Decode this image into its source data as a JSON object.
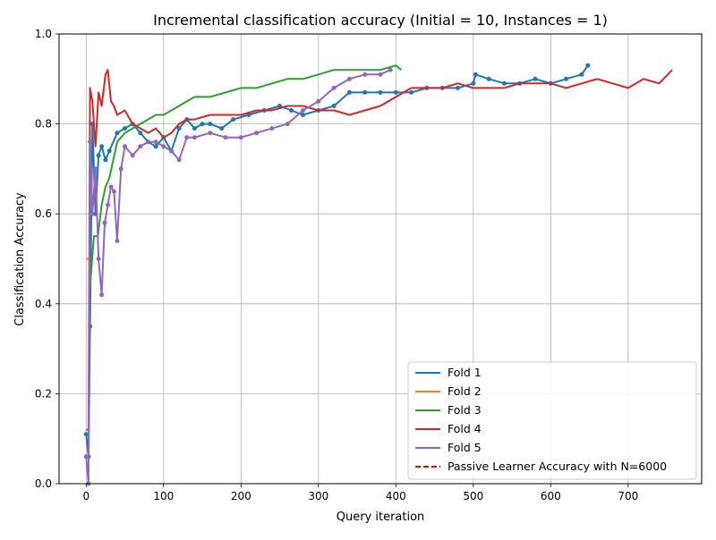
{
  "chart_data": {
    "type": "line",
    "title": "Incremental classification accuracy (Initial = 10, Instances = 1)",
    "xlabel": "Query iteration",
    "ylabel": "Classification Accuracy",
    "xlim": [
      -35,
      795
    ],
    "ylim": [
      0.0,
      1.0
    ],
    "xticks": [
      0,
      100,
      200,
      300,
      400,
      500,
      600,
      700
    ],
    "yticks": [
      0.0,
      0.2,
      0.4,
      0.6,
      0.8,
      1.0
    ],
    "xtick_labels": [
      "0",
      "100",
      "200",
      "300",
      "400",
      "500",
      "600",
      "700"
    ],
    "ytick_labels": [
      "0.0",
      "0.2",
      "0.4",
      "0.6",
      "0.8",
      "1.0"
    ],
    "grid": true,
    "legend_position": "lower-right",
    "series": [
      {
        "name": "Fold 1",
        "color": "#1f77b4",
        "style": "solid-markers",
        "points": [
          [
            0,
            0.11
          ],
          [
            3,
            0.06
          ],
          [
            5,
            0.35
          ],
          [
            8,
            0.8
          ],
          [
            12,
            0.6
          ],
          [
            16,
            0.73
          ],
          [
            20,
            0.75
          ],
          [
            25,
            0.72
          ],
          [
            30,
            0.74
          ],
          [
            40,
            0.78
          ],
          [
            50,
            0.79
          ],
          [
            60,
            0.8
          ],
          [
            70,
            0.78
          ],
          [
            80,
            0.76
          ],
          [
            90,
            0.75
          ],
          [
            100,
            0.77
          ],
          [
            110,
            0.74
          ],
          [
            120,
            0.79
          ],
          [
            130,
            0.81
          ],
          [
            140,
            0.79
          ],
          [
            150,
            0.8
          ],
          [
            160,
            0.8
          ],
          [
            175,
            0.79
          ],
          [
            190,
            0.81
          ],
          [
            210,
            0.82
          ],
          [
            230,
            0.83
          ],
          [
            250,
            0.84
          ],
          [
            265,
            0.83
          ],
          [
            280,
            0.82
          ],
          [
            300,
            0.83
          ],
          [
            320,
            0.84
          ],
          [
            340,
            0.87
          ],
          [
            360,
            0.87
          ],
          [
            380,
            0.87
          ],
          [
            400,
            0.87
          ],
          [
            420,
            0.87
          ],
          [
            440,
            0.88
          ],
          [
            460,
            0.88
          ],
          [
            480,
            0.88
          ],
          [
            500,
            0.89
          ],
          [
            503,
            0.91
          ],
          [
            520,
            0.9
          ],
          [
            540,
            0.89
          ],
          [
            560,
            0.89
          ],
          [
            580,
            0.9
          ],
          [
            600,
            0.89
          ],
          [
            620,
            0.9
          ],
          [
            640,
            0.91
          ],
          [
            648,
            0.93
          ]
        ]
      },
      {
        "name": "Fold 2",
        "color": "#ff7f0e",
        "style": "solid",
        "points": [
          [
            0,
            0.5
          ],
          [
            4,
            0.5
          ]
        ]
      },
      {
        "name": "Fold 3",
        "color": "#2ca02c",
        "style": "solid",
        "points": [
          [
            5,
            0.44
          ],
          [
            10,
            0.55
          ],
          [
            15,
            0.55
          ],
          [
            20,
            0.62
          ],
          [
            25,
            0.66
          ],
          [
            30,
            0.68
          ],
          [
            35,
            0.72
          ],
          [
            40,
            0.76
          ],
          [
            50,
            0.78
          ],
          [
            60,
            0.79
          ],
          [
            70,
            0.8
          ],
          [
            80,
            0.81
          ],
          [
            90,
            0.82
          ],
          [
            100,
            0.82
          ],
          [
            110,
            0.83
          ],
          [
            120,
            0.84
          ],
          [
            130,
            0.85
          ],
          [
            140,
            0.86
          ],
          [
            160,
            0.86
          ],
          [
            180,
            0.87
          ],
          [
            200,
            0.88
          ],
          [
            220,
            0.88
          ],
          [
            240,
            0.89
          ],
          [
            260,
            0.9
          ],
          [
            280,
            0.9
          ],
          [
            300,
            0.91
          ],
          [
            320,
            0.92
          ],
          [
            340,
            0.92
          ],
          [
            360,
            0.92
          ],
          [
            380,
            0.92
          ],
          [
            400,
            0.93
          ],
          [
            407,
            0.92
          ]
        ]
      },
      {
        "name": "Fold 4",
        "color": "#d62728",
        "style": "solid",
        "points": [
          [
            0,
            0.12
          ],
          [
            3,
            0.12
          ],
          [
            5,
            0.88
          ],
          [
            8,
            0.85
          ],
          [
            12,
            0.75
          ],
          [
            16,
            0.87
          ],
          [
            20,
            0.84
          ],
          [
            25,
            0.91
          ],
          [
            28,
            0.92
          ],
          [
            32,
            0.85
          ],
          [
            36,
            0.84
          ],
          [
            40,
            0.82
          ],
          [
            50,
            0.83
          ],
          [
            60,
            0.8
          ],
          [
            70,
            0.79
          ],
          [
            80,
            0.78
          ],
          [
            90,
            0.79
          ],
          [
            100,
            0.77
          ],
          [
            110,
            0.78
          ],
          [
            120,
            0.8
          ],
          [
            130,
            0.81
          ],
          [
            140,
            0.81
          ],
          [
            160,
            0.82
          ],
          [
            180,
            0.82
          ],
          [
            200,
            0.82
          ],
          [
            220,
            0.83
          ],
          [
            240,
            0.83
          ],
          [
            260,
            0.84
          ],
          [
            280,
            0.84
          ],
          [
            300,
            0.83
          ],
          [
            320,
            0.83
          ],
          [
            340,
            0.82
          ],
          [
            360,
            0.83
          ],
          [
            380,
            0.84
          ],
          [
            400,
            0.86
          ],
          [
            420,
            0.88
          ],
          [
            440,
            0.88
          ],
          [
            460,
            0.88
          ],
          [
            480,
            0.89
          ],
          [
            500,
            0.88
          ],
          [
            520,
            0.88
          ],
          [
            540,
            0.88
          ],
          [
            560,
            0.89
          ],
          [
            580,
            0.89
          ],
          [
            600,
            0.89
          ],
          [
            620,
            0.88
          ],
          [
            640,
            0.89
          ],
          [
            660,
            0.9
          ],
          [
            680,
            0.89
          ],
          [
            700,
            0.88
          ],
          [
            720,
            0.9
          ],
          [
            740,
            0.89
          ],
          [
            757,
            0.92
          ]
        ]
      },
      {
        "name": "Fold 5",
        "color": "#9467bd",
        "style": "solid-markers",
        "points": [
          [
            0,
            0.06
          ],
          [
            3,
            0.0
          ],
          [
            5,
            0.76
          ],
          [
            8,
            0.6
          ],
          [
            12,
            0.7
          ],
          [
            16,
            0.5
          ],
          [
            20,
            0.42
          ],
          [
            24,
            0.58
          ],
          [
            28,
            0.62
          ],
          [
            32,
            0.66
          ],
          [
            36,
            0.65
          ],
          [
            40,
            0.54
          ],
          [
            45,
            0.7
          ],
          [
            50,
            0.75
          ],
          [
            60,
            0.73
          ],
          [
            70,
            0.75
          ],
          [
            80,
            0.76
          ],
          [
            90,
            0.76
          ],
          [
            100,
            0.75
          ],
          [
            110,
            0.74
          ],
          [
            120,
            0.72
          ],
          [
            130,
            0.77
          ],
          [
            140,
            0.77
          ],
          [
            160,
            0.78
          ],
          [
            180,
            0.77
          ],
          [
            200,
            0.77
          ],
          [
            220,
            0.78
          ],
          [
            240,
            0.79
          ],
          [
            260,
            0.8
          ],
          [
            280,
            0.83
          ],
          [
            300,
            0.85
          ],
          [
            320,
            0.88
          ],
          [
            340,
            0.9
          ],
          [
            360,
            0.91
          ],
          [
            380,
            0.91
          ],
          [
            393,
            0.92
          ]
        ]
      },
      {
        "name": "Passive Learner Accuracy with N=6000",
        "color": "#ff0000",
        "style": "dashed",
        "points": []
      }
    ]
  }
}
